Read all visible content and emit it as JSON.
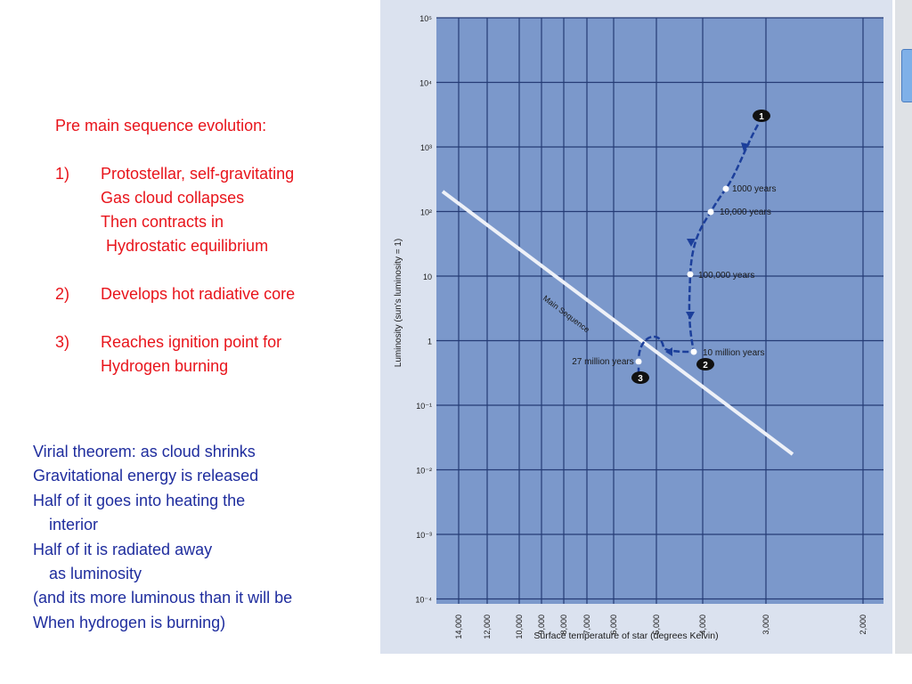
{
  "left_text": {
    "heading": "Pre main sequence evolution:",
    "items": [
      {
        "num": "1)",
        "lines": [
          "Protostellar, self-gravitating",
          "Gas cloud collapses",
          "Then contracts in",
          " Hydrostatic equilibrium"
        ]
      },
      {
        "num": "2)",
        "lines": [
          "Develops hot radiative core"
        ]
      },
      {
        "num": "3)",
        "lines": [
          "Reaches ignition point for",
          "Hydrogen burning"
        ]
      }
    ],
    "virial": [
      "Virial theorem: as cloud shrinks",
      "Gravitational energy is released",
      "Half of it goes into heating the",
      "interior",
      "Half of it is radiated away",
      "as luminosity",
      "(and its more luminous than it will be",
      "When hydrogen is burning)"
    ]
  },
  "colors": {
    "accent_red": "#e8141b",
    "text_blue": "#1f2d9e",
    "plot_bg": "#7b98cb",
    "track": "#1c3f9b"
  },
  "chart_data": {
    "type": "line",
    "xlabel": "Surface temperature of star (degrees Kelvin)",
    "ylabel": "Luminosity (sun's luminosity = 1)",
    "x_scale": "log-reversed",
    "y_scale": "log",
    "x_ticks": [
      "14,000",
      "12,000",
      "10,000",
      "9,000",
      "8,000",
      "7,000",
      "6,000",
      "5,000",
      "4,000",
      "3,000",
      "2,000"
    ],
    "y_ticks": [
      "10⁵",
      "10⁴",
      "10³",
      "10²",
      "10",
      "1",
      "10⁻¹",
      "10⁻²",
      "10⁻³",
      "10⁻⁴"
    ],
    "series": [
      {
        "name": "Main Sequence",
        "points": [
          [
            15000,
            1200
          ],
          [
            2800,
            0.015
          ]
        ]
      },
      {
        "points": [
          [
            3800,
            2000
          ],
          [
            4000,
            200
          ],
          [
            4200,
            100
          ],
          [
            4500,
            10
          ],
          [
            4400,
            2
          ],
          [
            4500,
            0.6
          ],
          [
            5500,
            0.8
          ],
          [
            6000,
            0.4
          ]
        ]
      }
    ],
    "annotations": [
      {
        "label": "1000 years",
        "x": 4000,
        "y": 200
      },
      {
        "label": "10,000 years",
        "x": 4200,
        "y": 100
      },
      {
        "label": "100,000 years",
        "x": 4500,
        "y": 10
      },
      {
        "label": "10 million years",
        "x": 4500,
        "y": 0.6
      },
      {
        "label": "27 million years",
        "x": 6000,
        "y": 0.4
      }
    ],
    "markers": [
      "1",
      "2",
      "3"
    ]
  }
}
